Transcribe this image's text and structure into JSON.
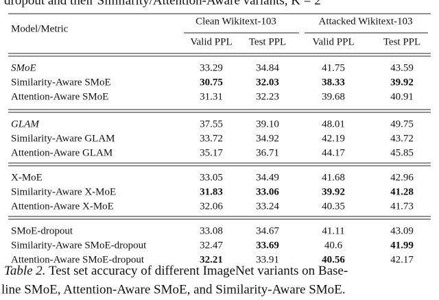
{
  "top_text": "dropout and their Similarity/Attention-Aware variants, K = 2",
  "table": {
    "corner": "Model/Metric",
    "groups_header": [
      "Clean Wikitext-103",
      "Attacked Wikitext-103"
    ],
    "columns": [
      "Valid PPL",
      "Test PPL",
      "Valid PPL",
      "Test PPL"
    ],
    "sections": [
      [
        {
          "model": "SMoE",
          "italic": true,
          "values": [
            "33.29",
            "34.84",
            "41.75",
            "43.59"
          ],
          "bold": [
            false,
            false,
            false,
            false
          ]
        },
        {
          "model": "Similarity-Aware SMoE",
          "italic": false,
          "values": [
            "30.75",
            "32.03",
            "38.33",
            "39.92"
          ],
          "bold": [
            true,
            true,
            true,
            true
          ]
        },
        {
          "model": "Attention-Aware SMoE",
          "italic": false,
          "values": [
            "31.31",
            "32.23",
            "39.68",
            "40.91"
          ],
          "bold": [
            false,
            false,
            false,
            false
          ]
        }
      ],
      [
        {
          "model": "GLAM",
          "italic": true,
          "values": [
            "37.55",
            "39.10",
            "48.01",
            "49.75"
          ],
          "bold": [
            false,
            false,
            false,
            false
          ]
        },
        {
          "model": "Similarity-Aware GLAM",
          "italic": false,
          "values": [
            "33.72",
            "34.92",
            "42.19",
            "43.72"
          ],
          "bold": [
            false,
            false,
            false,
            false
          ]
        },
        {
          "model": "Attention-Aware GLAM",
          "italic": false,
          "values": [
            "35.17",
            "36.71",
            "44.17",
            "45.85"
          ],
          "bold": [
            false,
            false,
            false,
            false
          ]
        }
      ],
      [
        {
          "model": "X-MoE",
          "italic": false,
          "values": [
            "33.05",
            "34.49",
            "41.68",
            "42.96"
          ],
          "bold": [
            false,
            false,
            false,
            false
          ]
        },
        {
          "model": "Similarity-Aware X-MoE",
          "italic": false,
          "values": [
            "31.83",
            "33.06",
            "39.92",
            "41.28"
          ],
          "bold": [
            true,
            true,
            true,
            true
          ]
        },
        {
          "model": "Attention-Aware X-MoE",
          "italic": false,
          "values": [
            "32.06",
            "33.24",
            "40.35",
            "41.73"
          ],
          "bold": [
            false,
            false,
            false,
            false
          ]
        }
      ],
      [
        {
          "model": "SMoE-dropout",
          "italic": false,
          "values": [
            "33.08",
            "34.67",
            "41.11",
            "43.09"
          ],
          "bold": [
            false,
            false,
            false,
            false
          ]
        },
        {
          "model": "Similarity-Aware SMoE-dropout",
          "italic": false,
          "values": [
            "32.47",
            "33.69",
            "40.6",
            "41.99"
          ],
          "bold": [
            false,
            true,
            false,
            true
          ]
        },
        {
          "model": "Attention-Aware SMoE-dropout",
          "italic": false,
          "values": [
            "32.21",
            "33.91",
            "40.56",
            "42.17"
          ],
          "bold": [
            true,
            false,
            true,
            false
          ]
        }
      ]
    ]
  },
  "caption": {
    "label": "Table 2.",
    "line1": "Test set accuracy of different ImageNet variants on Base-",
    "line2": "line SMoE, Attention-Aware SMoE, and Similarity-Aware SMoE."
  }
}
